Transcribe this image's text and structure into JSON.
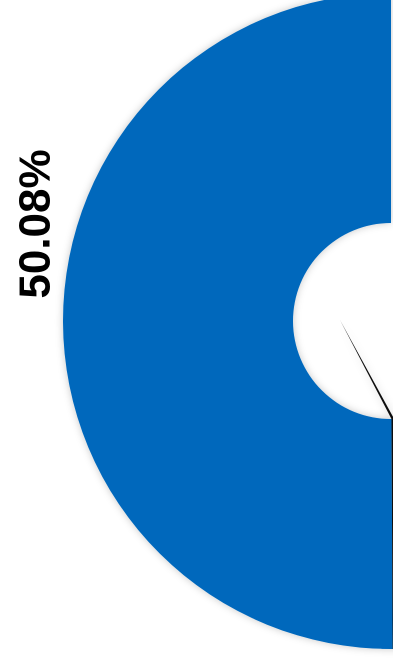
{
  "chart_data": {
    "type": "pie",
    "variant": "donut",
    "slices": [
      {
        "value": 50.08,
        "label": "50.08%",
        "color": "#0068bc"
      },
      {
        "value": 0.44,
        "label": "",
        "color": "#111111"
      }
    ]
  }
}
